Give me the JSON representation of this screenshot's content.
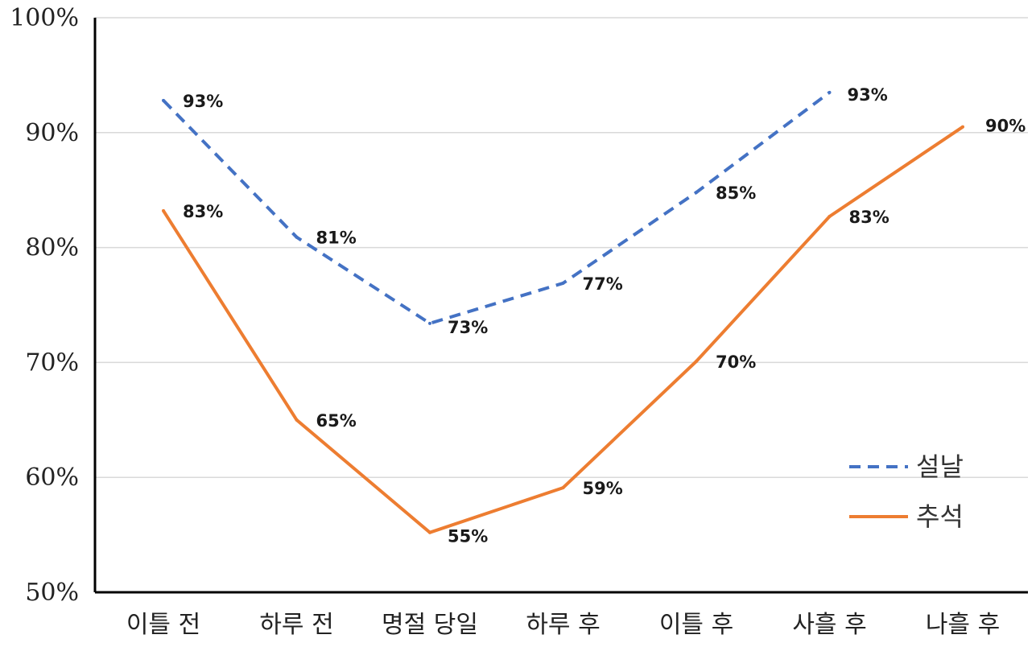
{
  "chart_data": {
    "type": "line",
    "title": "",
    "xlabel": "",
    "ylabel": "",
    "categories": [
      "이틀 전",
      "하루 전",
      "명절 당일",
      "하루 후",
      "이틀 후",
      "사흘 후",
      "나흘 후"
    ],
    "y_tick_labels": [
      "50%",
      "60%",
      "70%",
      "80%",
      "90%",
      "100%"
    ],
    "ylim": [
      50,
      100
    ],
    "grid": "horizontal",
    "legend_position": "bottom-right",
    "series": [
      {
        "name": "설날",
        "style": "dashed",
        "color": "#4472C4",
        "values": [
          92.8,
          80.9,
          73.4,
          76.9,
          84.8,
          93.5,
          null
        ],
        "labels": [
          "93%",
          "81%",
          "73%",
          "77%",
          "85%",
          "93%",
          null
        ]
      },
      {
        "name": "추석",
        "style": "solid",
        "color": "#ED7D31",
        "values": [
          83.2,
          65.0,
          55.2,
          59.1,
          70.1,
          82.7,
          90.5
        ],
        "labels": [
          "83%",
          "65%",
          "55%",
          "59%",
          "70%",
          "83%",
          "90%"
        ]
      }
    ]
  }
}
